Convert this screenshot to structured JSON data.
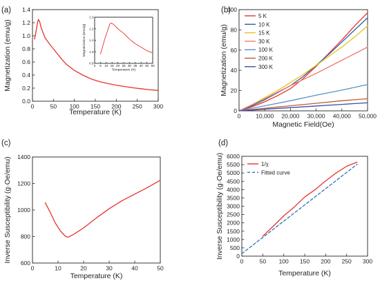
{
  "colors": {
    "red": "#e8312a",
    "blue_dashed": "#2e6fbd",
    "axis": "#222222"
  },
  "chart_data": [
    {
      "id": "a",
      "type": "line",
      "panel_label": "(a)",
      "xlabel": "Temperature (K)",
      "ylabel": "Magnetization (emu/g)",
      "xlim": [
        0,
        300
      ],
      "ylim": [
        0,
        1.4
      ],
      "xticks": [
        0,
        50,
        100,
        150,
        200,
        250,
        300
      ],
      "yticks": [
        0.0,
        0.2,
        0.4,
        0.6,
        0.8,
        1.0,
        1.2,
        1.4
      ],
      "xtick_labels": [
        "0",
        "50",
        "100",
        "150",
        "200",
        "250",
        "300"
      ],
      "ytick_labels": [
        "0.0",
        "0.2",
        "0.4",
        "0.6",
        "0.8",
        "1.0",
        "1.2",
        "1.4"
      ],
      "series": [
        {
          "color": "#e8312a",
          "x": [
            5,
            8,
            10,
            12,
            14,
            17,
            20,
            25,
            30,
            40,
            50,
            60,
            70,
            80,
            90,
            100,
            120,
            140,
            160,
            180,
            200,
            220,
            240,
            260,
            280,
            300
          ],
          "y": [
            0.95,
            1.05,
            1.12,
            1.2,
            1.25,
            1.22,
            1.14,
            1.05,
            0.97,
            0.88,
            0.8,
            0.72,
            0.64,
            0.57,
            0.52,
            0.47,
            0.4,
            0.34,
            0.3,
            0.27,
            0.245,
            0.225,
            0.205,
            0.19,
            0.175,
            0.165
          ]
        }
      ],
      "inset": {
        "xlabel": "Temperature (K)",
        "ylabel": "Magnetization (emu/g)",
        "xlim": [
          0,
          50
        ],
        "ylim": [
          0.9,
          1.3
        ],
        "xticks": [
          0,
          5,
          10,
          15,
          20,
          25,
          30,
          35,
          40,
          45,
          50
        ],
        "yticks": [
          0.9,
          1.0,
          1.1,
          1.2,
          1.3
        ],
        "xtick_labels": [
          "0",
          "5",
          "10",
          "15",
          "20",
          "25",
          "30",
          "35",
          "40",
          "45",
          "50"
        ],
        "ytick_labels": [
          "0.9",
          "1.0",
          "1.1",
          "1.2",
          "1.3"
        ],
        "series": [
          {
            "color": "#e8312a",
            "x": [
              5,
              7,
              9,
              11,
              13,
              14,
              16,
              18,
              20,
              25,
              30,
              35,
              40,
              45,
              50
            ],
            "y": [
              0.98,
              1.05,
              1.12,
              1.18,
              1.24,
              1.25,
              1.24,
              1.22,
              1.2,
              1.16,
              1.11,
              1.07,
              1.04,
              1.01,
              0.99
            ]
          }
        ]
      }
    },
    {
      "id": "b",
      "type": "line",
      "panel_label": "(b)",
      "xlabel": "Magnetic Field(Oe)",
      "ylabel": "Magnetization (emu/g)",
      "xlim": [
        0,
        50000
      ],
      "ylim": [
        0,
        100
      ],
      "xticks": [
        0,
        10000,
        20000,
        30000,
        40000,
        50000
      ],
      "yticks": [
        0,
        20,
        40,
        60,
        80,
        100
      ],
      "xtick_labels": [
        "0",
        "10,000",
        "20,000",
        "30,000",
        "40,000",
        "50,000"
      ],
      "ytick_labels": [
        "0",
        "20",
        "40",
        "60",
        "80",
        "100"
      ],
      "legend": {
        "placement": "top-left"
      },
      "series": [
        {
          "name": "5 K",
          "color": "#e8312a",
          "x": [
            0,
            5000,
            10000,
            15000,
            20000,
            25000,
            30000,
            35000,
            40000,
            45000,
            50000
          ],
          "y": [
            0,
            4,
            9,
            15,
            22,
            32,
            44,
            57,
            70,
            84,
            97
          ]
        },
        {
          "name": "10 K",
          "color": "#2e5f9e",
          "x": [
            0,
            5000,
            10000,
            15000,
            20000,
            25000,
            30000,
            35000,
            40000,
            45000,
            50000
          ],
          "y": [
            0,
            5,
            11,
            18,
            25,
            34,
            45,
            56,
            68,
            80,
            92
          ]
        },
        {
          "name": "15 K",
          "color": "#e6c21d",
          "x": [
            0,
            5000,
            10000,
            15000,
            20000,
            25000,
            30000,
            35000,
            40000,
            45000,
            50000
          ],
          "y": [
            0,
            6,
            13,
            20,
            28,
            36,
            45,
            54,
            63,
            73,
            84
          ]
        },
        {
          "name": "30 K",
          "color": "#f07a70",
          "x": [
            0,
            10000,
            20000,
            30000,
            40000,
            50000
          ],
          "y": [
            0,
            12,
            25,
            37,
            50,
            63
          ]
        },
        {
          "name": "100 K",
          "color": "#5b8fc8",
          "x": [
            0,
            10000,
            20000,
            30000,
            40000,
            50000
          ],
          "y": [
            0,
            5,
            10,
            15.5,
            20.5,
            26
          ]
        },
        {
          "name": "200 K",
          "color": "#c25a2a",
          "x": [
            0,
            10000,
            20000,
            30000,
            40000,
            50000
          ],
          "y": [
            0,
            2.5,
            5,
            7.5,
            10,
            12
          ]
        },
        {
          "name": "300 K",
          "color": "#3b4aa8",
          "x": [
            0,
            10000,
            20000,
            30000,
            40000,
            50000
          ],
          "y": [
            0,
            1.6,
            3.2,
            4.8,
            6.4,
            8
          ]
        }
      ]
    },
    {
      "id": "c",
      "type": "line",
      "panel_label": "(c)",
      "xlabel": "Temperature (K)",
      "ylabel": "Inverse Susceptibility (g·Oe/emu)",
      "xlim": [
        0,
        50
      ],
      "ylim": [
        600,
        1400
      ],
      "xticks": [
        0,
        10,
        20,
        30,
        40,
        50
      ],
      "yticks": [
        600,
        800,
        1000,
        1200,
        1400
      ],
      "xtick_labels": [
        "0",
        "10",
        "20",
        "30",
        "40",
        "50"
      ],
      "ytick_labels": [
        "600",
        "800",
        "1000",
        "1200",
        "1400"
      ],
      "series": [
        {
          "color": "#e8312a",
          "x": [
            5,
            7,
            9,
            11,
            13,
            14,
            16,
            18,
            20,
            25,
            30,
            35,
            40,
            45,
            50
          ],
          "y": [
            1055,
            980,
            900,
            840,
            800,
            795,
            815,
            840,
            865,
            940,
            1010,
            1070,
            1120,
            1170,
            1225
          ]
        }
      ]
    },
    {
      "id": "d",
      "type": "line",
      "panel_label": "(d)",
      "xlabel": "Temperature (K)",
      "ylabel": "Inverse Susceptibility (g·Oe/emu)",
      "xlim": [
        0,
        300
      ],
      "ylim": [
        0,
        6000
      ],
      "xticks": [
        0,
        50,
        100,
        150,
        200,
        250,
        300
      ],
      "yticks": [
        0,
        500,
        1000,
        1500,
        2000,
        2500,
        3000,
        3500,
        4000,
        4500,
        5000,
        5500,
        6000
      ],
      "xtick_labels": [
        "0",
        "50",
        "100",
        "150",
        "200",
        "250",
        "300"
      ],
      "ytick_labels": [
        "0",
        "500",
        "1000",
        "1500",
        "2000",
        "2500",
        "3000",
        "3500",
        "4000",
        "4500",
        "5000",
        "5500",
        "6000"
      ],
      "legend": {
        "placement": "top-left"
      },
      "series": [
        {
          "name": "1/χ",
          "color": "#e8312a",
          "style": "solid",
          "x": [
            50,
            75,
            100,
            125,
            150,
            175,
            200,
            225,
            250,
            275
          ],
          "y": [
            1200,
            1800,
            2420,
            2950,
            3550,
            4000,
            4520,
            5000,
            5400,
            5650
          ]
        },
        {
          "name": "Fitted curve",
          "color": "#2e6fbd",
          "style": "dashed",
          "x": [
            0,
            275
          ],
          "y": [
            150,
            5520
          ]
        }
      ]
    }
  ]
}
